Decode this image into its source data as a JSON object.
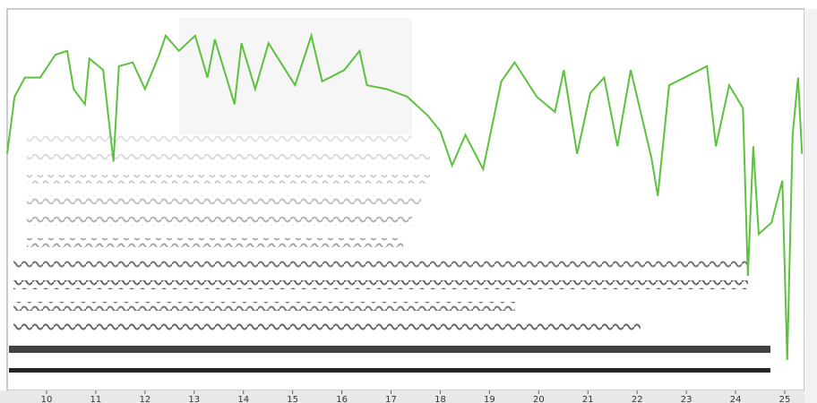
{
  "chart_data": {
    "type": "line",
    "x": [
      9.2,
      9.35,
      9.56,
      9.87,
      10.18,
      10.42,
      10.55,
      10.78,
      10.87,
      11.15,
      11.36,
      11.47,
      11.75,
      12.0,
      12.29,
      12.42,
      12.69,
      13.02,
      13.27,
      13.42,
      13.82,
      13.96,
      14.24,
      14.51,
      15.05,
      15.38,
      15.6,
      16.05,
      16.36,
      16.51,
      16.91,
      17.33,
      17.75,
      18.0,
      18.24,
      18.51,
      18.87,
      19.24,
      19.51,
      19.96,
      20.33,
      20.51,
      20.78,
      21.05,
      21.33,
      21.6,
      21.87,
      22.29,
      22.42,
      22.65,
      22.96,
      23.42,
      23.6,
      23.87,
      24.15,
      24.25,
      24.36,
      24.47,
      24.73,
      24.95,
      25.05,
      25.16,
      25.27,
      25.35
    ],
    "series": [
      {
        "color": "#5cc23e",
        "values": [
          62,
          77,
          82,
          82,
          88,
          89,
          79,
          75,
          87,
          84,
          60,
          85,
          86,
          79,
          88,
          93,
          89,
          93,
          82,
          92,
          75,
          91,
          79,
          91,
          80,
          93,
          81,
          84,
          89,
          80,
          79,
          77,
          72,
          68,
          59,
          67,
          58,
          81,
          86,
          77,
          73,
          84,
          62,
          78,
          82,
          64,
          84,
          61,
          51,
          80,
          82,
          85,
          64,
          80,
          74,
          30,
          64,
          41,
          44,
          55,
          8,
          67,
          82,
          62
        ]
      }
    ],
    "xlim": [
      9.2,
      25.4
    ],
    "ylim": [
      0,
      100
    ],
    "xticks": [
      10,
      11,
      12,
      13,
      14,
      15,
      16,
      17,
      18,
      19,
      20,
      21,
      22,
      23,
      24,
      25
    ]
  }
}
